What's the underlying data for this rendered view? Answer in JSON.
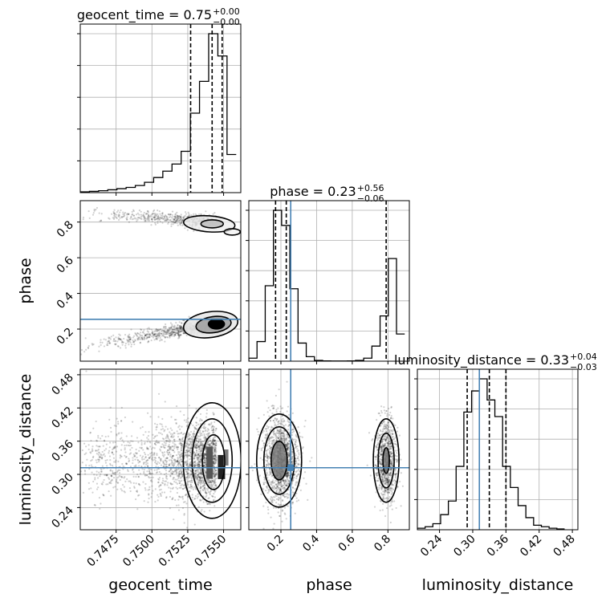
{
  "chart_data": [
    {
      "type": "histogram",
      "panel": "geocent_time-marginal",
      "title": {
        "main": "geocent_time = 0.75",
        "sup": "+0.00",
        "sub": "−0.00"
      },
      "xlim": [
        0.745,
        0.7562
      ],
      "bins": [
        0.745,
        0.74564,
        0.74628,
        0.74692,
        0.74756,
        0.7482,
        0.74884,
        0.74948,
        0.75012,
        0.75076,
        0.7514,
        0.75204,
        0.75268,
        0.75332,
        0.75396,
        0.7546,
        0.75524,
        0.75588
      ],
      "counts": [
        0.005,
        0.008,
        0.012,
        0.018,
        0.025,
        0.033,
        0.045,
        0.065,
        0.095,
        0.135,
        0.18,
        0.26,
        0.5,
        0.7,
        1.0,
        0.86,
        0.24
      ],
      "quantile_lines": [
        0.7527,
        0.7542,
        0.7549
      ],
      "grid": true
    },
    {
      "type": "histogram",
      "panel": "phase-marginal",
      "title": {
        "main": "phase = 0.23",
        "sup": "+0.56",
        "sub": "−0.06"
      },
      "xlim": [
        0.02,
        0.92
      ],
      "bins": [
        0.02,
        0.066,
        0.112,
        0.158,
        0.204,
        0.25,
        0.296,
        0.342,
        0.388,
        0.434,
        0.48,
        0.526,
        0.572,
        0.618,
        0.664,
        0.71,
        0.756,
        0.802,
        0.848,
        0.894
      ],
      "counts": [
        0.02,
        0.13,
        0.5,
        1.0,
        0.9,
        0.48,
        0.12,
        0.03,
        0.005,
        0.002,
        0.001,
        0.001,
        0.002,
        0.005,
        0.02,
        0.1,
        0.3,
        0.68,
        0.18
      ],
      "quantile_lines": [
        0.17,
        0.23,
        0.79
      ],
      "truth": 0.255,
      "grid": true
    },
    {
      "type": "histogram",
      "panel": "luminosity_distance-marginal",
      "title": {
        "main": "luminosity_distance = 0.33",
        "sup": "+0.04",
        "sub": "−0.03"
      },
      "xlim": [
        0.2,
        0.49
      ],
      "xlabel": "luminosity_distance",
      "xticks": [
        "0.24",
        "0.30",
        "0.36",
        "0.42",
        "0.48"
      ],
      "xtick_values": [
        0.24,
        0.3,
        0.36,
        0.42,
        0.48
      ],
      "bins": [
        0.2,
        0.214,
        0.228,
        0.242,
        0.256,
        0.27,
        0.284,
        0.298,
        0.312,
        0.326,
        0.34,
        0.354,
        0.368,
        0.382,
        0.396,
        0.41,
        0.424,
        0.438,
        0.452,
        0.466
      ],
      "counts": [
        0.01,
        0.02,
        0.04,
        0.1,
        0.19,
        0.42,
        0.78,
        0.92,
        1.0,
        0.86,
        0.75,
        0.42,
        0.28,
        0.16,
        0.08,
        0.03,
        0.02,
        0.01,
        0.005
      ],
      "quantile_lines": [
        0.29,
        0.33,
        0.36
      ],
      "truth": 0.312,
      "grid": true
    },
    {
      "type": "scatter",
      "panel": "phase-vs-geocent_time",
      "xlim": [
        0.745,
        0.7562
      ],
      "ylim": [
        0.02,
        0.92
      ],
      "ylabel": "phase",
      "yticks": [
        "0.2",
        "0.4",
        "0.6",
        "0.8"
      ],
      "ytick_values": [
        0.2,
        0.4,
        0.6,
        0.8
      ],
      "truth_y": 0.255,
      "grid": true
    },
    {
      "type": "scatter",
      "panel": "luminosity_distance-vs-geocent_time",
      "xlim": [
        0.745,
        0.7562
      ],
      "ylim": [
        0.2,
        0.49
      ],
      "xlabel": "geocent_time",
      "ylabel": "luminosity_distance",
      "xticks": [
        "0.7475",
        "0.7500",
        "0.7525",
        "0.7550"
      ],
      "xtick_values": [
        0.7475,
        0.75,
        0.7525,
        0.755
      ],
      "yticks": [
        "0.24",
        "0.30",
        "0.36",
        "0.42",
        "0.48"
      ],
      "ytick_values": [
        0.24,
        0.3,
        0.36,
        0.42,
        0.48
      ],
      "truth_y": 0.312,
      "grid": true
    },
    {
      "type": "scatter",
      "panel": "luminosity_distance-vs-phase",
      "xlim": [
        0.02,
        0.92
      ],
      "ylim": [
        0.2,
        0.49
      ],
      "xlabel": "phase",
      "xticks": [
        "0.2",
        "0.4",
        "0.6",
        "0.8"
      ],
      "xtick_values": [
        0.2,
        0.4,
        0.6,
        0.8
      ],
      "truth_x": 0.255,
      "truth_y": 0.312,
      "grid": true
    }
  ],
  "colors": {
    "truth": "#4682b4",
    "hist": "#000000",
    "grid": "#b0b0b0"
  }
}
